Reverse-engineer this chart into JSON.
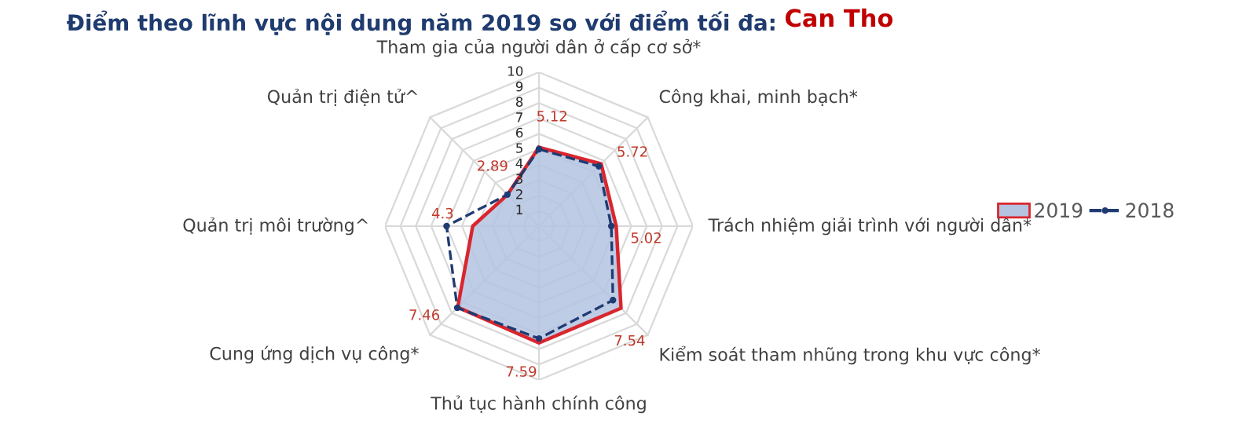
{
  "chart_data": {
    "type": "radar",
    "title": "Điểm theo lĩnh vực nội dung năm 2019 so với điểm tối đa:",
    "subtitle": "Can Tho",
    "categories": [
      "Tham gia của người dân ở cấp cơ sở*",
      "Công khai, minh bạch*",
      "Trách nhiệm giải trình với người dân*",
      "Kiểm soát tham nhũng trong khu vực công*",
      "Thủ tục hành chính công",
      "Cung ứng dịch vụ công*",
      "Quản trị môi trường^",
      "Quản trị điện tử^"
    ],
    "series": [
      {
        "name": "2019",
        "color": "#b4c3e0",
        "values": [
          5.12,
          5.72,
          5.02,
          7.54,
          7.59,
          7.46,
          4.3,
          2.89
        ],
        "value_labels": [
          "5.12",
          "5.72",
          "5.02",
          "7.54",
          "7.59",
          "7.46",
          "4.3",
          "2.89"
        ]
      },
      {
        "name": "2018",
        "color": "#1f3b73",
        "line_style": "dashed",
        "marker": "circle",
        "values": [
          5.0,
          5.5,
          4.7,
          6.8,
          7.3,
          7.5,
          6.0,
          2.9
        ]
      }
    ],
    "ylim": [
      0,
      10
    ],
    "yticks": [
      1,
      2,
      3,
      4,
      5,
      6,
      7,
      8,
      9,
      10
    ],
    "grid": true,
    "legend": "right"
  }
}
